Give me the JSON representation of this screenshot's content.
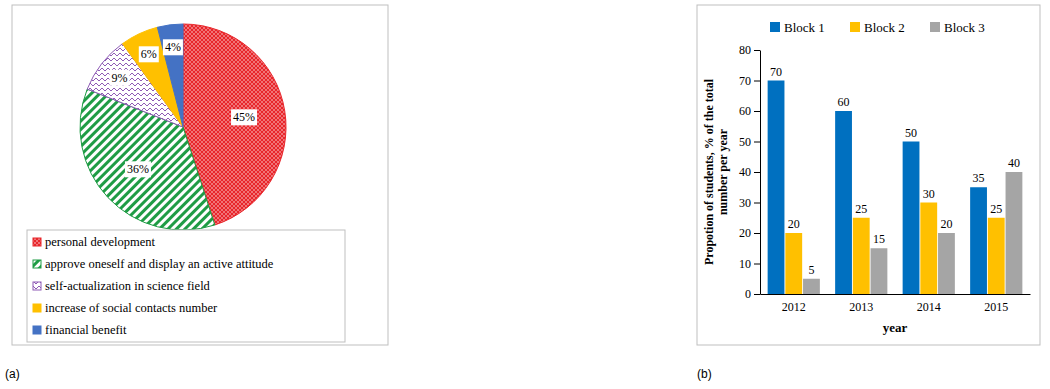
{
  "chart_data": [
    {
      "type": "pie",
      "annotations": [
        "(a)"
      ],
      "categories": [
        "personal development",
        "approve oneself and display an active attitude",
        "self-actualization in science field",
        "increase of social contacts number",
        "financial benefit"
      ],
      "values": [
        45,
        36,
        9,
        6,
        4
      ],
      "value_labels": [
        "45%",
        "36%",
        "9%",
        "6%",
        "4%"
      ],
      "colors": [
        "#e8262b",
        "#1f9c45",
        "#8e5bb5",
        "#ffc000",
        "#4472c4"
      ],
      "data_labels": true,
      "legend": "bottom"
    },
    {
      "type": "bar",
      "annotations": [
        "(b)"
      ],
      "xlabel": "year",
      "ylabel": "Propotion of students, % of the total number per year",
      "categories": [
        "2012",
        "2013",
        "2014",
        "2015"
      ],
      "series": [
        {
          "name": "Block 1",
          "color": "#0070c0",
          "values": [
            70,
            60,
            50,
            35
          ]
        },
        {
          "name": "Block 2",
          "color": "#ffc000",
          "values": [
            20,
            25,
            30,
            25
          ]
        },
        {
          "name": "Block 3",
          "color": "#a5a5a5",
          "values": [
            5,
            15,
            20,
            40
          ]
        }
      ],
      "ylim": [
        0,
        80
      ],
      "yticks": [
        0,
        10,
        20,
        30,
        40,
        50,
        60,
        70,
        80
      ],
      "data_labels": true,
      "legend": "top"
    }
  ]
}
